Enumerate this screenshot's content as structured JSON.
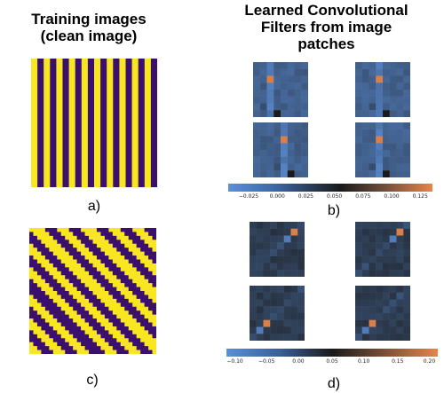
{
  "left_title_line1": "Training images",
  "left_title_line2": "(clean image)",
  "right_title_line1": "Learned Convolutional",
  "right_title_line2": "Filters from image",
  "right_title_line3": "patches",
  "labels": {
    "a": "a)",
    "b": "b)",
    "c": "c)",
    "d": "d)"
  },
  "colorbar_b": {
    "ticks": [
      "−0.025",
      "0.000",
      "0.025",
      "0.050",
      "0.075",
      "0.100",
      "0.125"
    ]
  },
  "colorbar_d": {
    "ticks": [
      "−0.10",
      "−0.05",
      "0.00",
      "0.05",
      "0.10",
      "0.15",
      "0.20"
    ]
  },
  "colors": {
    "stripe_yellow": "#f8e620",
    "stripe_purple": "#3b0f6e",
    "cmap_low": "#5b8fd9",
    "cmap_mid": "#1a1a1a",
    "cmap_high": "#e8844a"
  }
}
